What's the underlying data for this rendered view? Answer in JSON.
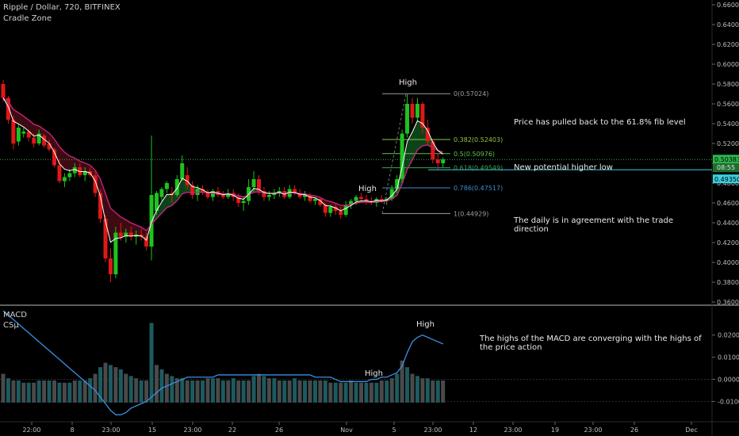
{
  "header": {
    "symbol_line": "Ripple / Dollar, 720, BITFINEX",
    "indicator": "Cradle Zone"
  },
  "macd_panel": {
    "title": "MACD",
    "subtitle": "CSμ"
  },
  "annotations": {
    "fib_note": "Price has pulled back to the 61.8% fib level",
    "higher_low_note": "New potential higher low",
    "daily_note_line1": "The daily is in agreement with the trade",
    "daily_note_line2": "direction",
    "macd_note_line1": "The highs of the MACD are converging with the highs of",
    "macd_note_line2": "the price action",
    "high_price_top": "High",
    "high_price_prev": "High",
    "high_macd_top": "High",
    "high_macd_prev": "High"
  },
  "price_axis": {
    "ticks": [
      "0.66000",
      "0.64000",
      "0.62000",
      "0.60000",
      "0.58000",
      "0.56000",
      "0.54000",
      "0.52000",
      "0.50000",
      "0.48000",
      "0.46000",
      "0.44000",
      "0.42000",
      "0.40000",
      "0.38000",
      "0.36000"
    ],
    "current_price": "0.50383",
    "countdown": "08:55",
    "level_tag": "0.49350"
  },
  "macd_axis": {
    "ticks": [
      "0.0200",
      "0.0100",
      "0.0000",
      "-0.0100"
    ]
  },
  "time_axis": {
    "labels": [
      "22:00",
      "8",
      "23:00",
      "15",
      "23:00",
      "22",
      "26",
      "Nov",
      "5",
      "23:00",
      "12",
      "23:00",
      "19",
      "23:00",
      "26",
      "Dec"
    ]
  },
  "fib_levels": [
    {
      "ratio": "0",
      "value": 0.57024,
      "label": "0(0.57024)",
      "color": "#9e9e9e"
    },
    {
      "ratio": "0.382",
      "value": 0.52403,
      "label": "0.382(0.52403)",
      "color": "#8fc640"
    },
    {
      "ratio": "0.5",
      "value": 0.50976,
      "label": "0.5(0.50976)",
      "color": "#5ec24b"
    },
    {
      "ratio": "0.618",
      "value": 0.49549,
      "label": "0.618(0.49549)",
      "color": "#3fa64a"
    },
    {
      "ratio": "0.786",
      "value": 0.47517,
      "label": "0.786(0.47517)",
      "color": "#3b8fd6"
    },
    {
      "ratio": "1",
      "value": 0.44929,
      "label": "1(0.44929)",
      "color": "#9e9e9e"
    }
  ],
  "colors": {
    "up": "#1fc21f",
    "down": "#e01818",
    "ema_fast": "#ffffff",
    "ema_slow": "#c0257a",
    "macd_line": "#3d8ee0",
    "hist_grey": "#4a4a4a",
    "hist_teal": "#1d5a60",
    "price_tag": "#2bb54a",
    "level_tag": "#3ad0e0",
    "fib_zero": "#9e9e9e"
  },
  "chart_data": {
    "type": "candlestick",
    "title": "Ripple / Dollar, 720, BITFINEX",
    "ylim": [
      0.36,
      0.66
    ],
    "candles_ohlc": [
      [
        0.58,
        0.584,
        0.562,
        0.566
      ],
      [
        0.566,
        0.568,
        0.54,
        0.544
      ],
      [
        0.544,
        0.548,
        0.514,
        0.52
      ],
      [
        0.522,
        0.54,
        0.518,
        0.536
      ],
      [
        0.53,
        0.536,
        0.526,
        0.532
      ],
      [
        0.532,
        0.534,
        0.522,
        0.526
      ],
      [
        0.526,
        0.53,
        0.516,
        0.52
      ],
      [
        0.52,
        0.534,
        0.518,
        0.53
      ],
      [
        0.528,
        0.53,
        0.516,
        0.518
      ],
      [
        0.52,
        0.524,
        0.512,
        0.514
      ],
      [
        0.514,
        0.516,
        0.496,
        0.498
      ],
      [
        0.498,
        0.504,
        0.48,
        0.482
      ],
      [
        0.482,
        0.49,
        0.476,
        0.486
      ],
      [
        0.486,
        0.494,
        0.482,
        0.49
      ],
      [
        0.49,
        0.5,
        0.486,
        0.496
      ],
      [
        0.496,
        0.5,
        0.486,
        0.488
      ],
      [
        0.488,
        0.496,
        0.482,
        0.492
      ],
      [
        0.492,
        0.496,
        0.486,
        0.488
      ],
      [
        0.488,
        0.492,
        0.466,
        0.47
      ],
      [
        0.47,
        0.474,
        0.44,
        0.444
      ],
      [
        0.444,
        0.448,
        0.4,
        0.404
      ],
      [
        0.404,
        0.414,
        0.38,
        0.388
      ],
      [
        0.388,
        0.436,
        0.384,
        0.43
      ],
      [
        0.43,
        0.44,
        0.422,
        0.426
      ],
      [
        0.426,
        0.434,
        0.42,
        0.43
      ],
      [
        0.43,
        0.436,
        0.422,
        0.426
      ],
      [
        0.426,
        0.432,
        0.418,
        0.428
      ],
      [
        0.428,
        0.434,
        0.422,
        0.426
      ],
      [
        0.426,
        0.43,
        0.412,
        0.416
      ],
      [
        0.416,
        0.528,
        0.402,
        0.468
      ],
      [
        0.452,
        0.472,
        0.448,
        0.47
      ],
      [
        0.466,
        0.476,
        0.462,
        0.474
      ],
      [
        0.474,
        0.482,
        0.47,
        0.48
      ],
      [
        0.47,
        0.476,
        0.46,
        0.468
      ],
      [
        0.468,
        0.488,
        0.466,
        0.484
      ],
      [
        0.484,
        0.508,
        0.482,
        0.5
      ],
      [
        0.488,
        0.496,
        0.474,
        0.478
      ],
      [
        0.478,
        0.482,
        0.464,
        0.468
      ],
      [
        0.468,
        0.478,
        0.462,
        0.474
      ],
      [
        0.474,
        0.478,
        0.468,
        0.47
      ],
      [
        0.47,
        0.474,
        0.464,
        0.466
      ],
      [
        0.466,
        0.474,
        0.462,
        0.472
      ],
      [
        0.472,
        0.476,
        0.466,
        0.468
      ],
      [
        0.468,
        0.472,
        0.464,
        0.466
      ],
      [
        0.466,
        0.474,
        0.464,
        0.47
      ],
      [
        0.47,
        0.474,
        0.462,
        0.466
      ],
      [
        0.466,
        0.47,
        0.456,
        0.46
      ],
      [
        0.46,
        0.466,
        0.452,
        0.462
      ],
      [
        0.462,
        0.484,
        0.458,
        0.476
      ],
      [
        0.476,
        0.492,
        0.47,
        0.484
      ],
      [
        0.484,
        0.488,
        0.468,
        0.472
      ],
      [
        0.472,
        0.476,
        0.462,
        0.466
      ],
      [
        0.466,
        0.472,
        0.462,
        0.468
      ],
      [
        0.468,
        0.474,
        0.464,
        0.47
      ],
      [
        0.47,
        0.476,
        0.466,
        0.472
      ],
      [
        0.472,
        0.476,
        0.464,
        0.466
      ],
      [
        0.466,
        0.478,
        0.464,
        0.474
      ],
      [
        0.474,
        0.478,
        0.468,
        0.47
      ],
      [
        0.47,
        0.474,
        0.464,
        0.466
      ],
      [
        0.466,
        0.472,
        0.462,
        0.468
      ],
      [
        0.468,
        0.47,
        0.46,
        0.462
      ],
      [
        0.462,
        0.466,
        0.458,
        0.464
      ],
      [
        0.464,
        0.466,
        0.456,
        0.458
      ],
      [
        0.458,
        0.46,
        0.446,
        0.45
      ],
      [
        0.45,
        0.458,
        0.446,
        0.456
      ],
      [
        0.456,
        0.46,
        0.448,
        0.452
      ],
      [
        0.452,
        0.456,
        0.444,
        0.448
      ],
      [
        0.448,
        0.462,
        0.446,
        0.458
      ],
      [
        0.458,
        0.464,
        0.454,
        0.462
      ],
      [
        0.462,
        0.468,
        0.458,
        0.466
      ],
      [
        0.466,
        0.47,
        0.46,
        0.464
      ],
      [
        0.464,
        0.468,
        0.458,
        0.462
      ],
      [
        0.462,
        0.466,
        0.458,
        0.46
      ],
      [
        0.46,
        0.466,
        0.456,
        0.464
      ],
      [
        0.464,
        0.468,
        0.46,
        0.462
      ],
      [
        0.462,
        0.466,
        0.458,
        0.464
      ],
      [
        0.464,
        0.478,
        0.462,
        0.474
      ],
      [
        0.474,
        0.488,
        0.47,
        0.484
      ],
      [
        0.484,
        0.534,
        0.48,
        0.53
      ],
      [
        0.53,
        0.57,
        0.526,
        0.56
      ],
      [
        0.56,
        0.566,
        0.54,
        0.546
      ],
      [
        0.546,
        0.566,
        0.542,
        0.56
      ],
      [
        0.56,
        0.562,
        0.53,
        0.536
      ],
      [
        0.536,
        0.544,
        0.518,
        0.522
      ],
      [
        0.522,
        0.524,
        0.5,
        0.504
      ],
      [
        0.504,
        0.51,
        0.494,
        0.5
      ],
      [
        0.5,
        0.506,
        0.496,
        0.504
      ]
    ],
    "macd_hist": [
      0.006,
      0.004,
      0.003,
      0.003,
      0.002,
      0.002,
      0.002,
      0.003,
      0.003,
      0.003,
      0.003,
      0.002,
      0.002,
      0.002,
      0.003,
      0.003,
      0.003,
      0.004,
      0.006,
      0.009,
      0.011,
      0.01,
      0.009,
      0.008,
      0.006,
      0.005,
      0.004,
      0.003,
      0.003,
      0.029,
      0.01,
      0.008,
      0.006,
      0.005,
      0.004,
      0.004,
      0.003,
      0.003,
      0.003,
      0.003,
      0.004,
      0.004,
      0.004,
      0.003,
      0.003,
      0.004,
      0.003,
      0.003,
      0.003,
      0.005,
      0.006,
      0.005,
      0.004,
      0.004,
      0.003,
      0.003,
      0.003,
      0.004,
      0.003,
      0.003,
      0.003,
      0.003,
      0.003,
      0.003,
      0.002,
      0.002,
      0.002,
      0.002,
      0.003,
      0.002,
      0.002,
      0.002,
      0.002,
      0.002,
      0.003,
      0.003,
      0.004,
      0.006,
      0.012,
      0.009,
      0.006,
      0.005,
      0.004,
      0.004,
      0.003,
      0.003,
      0.003
    ],
    "macd_line": [
      0.031,
      0.029,
      0.027,
      0.025,
      0.023,
      0.021,
      0.019,
      0.017,
      0.015,
      0.013,
      0.011,
      0.009,
      0.007,
      0.005,
      0.003,
      0.001,
      -0.001,
      -0.003,
      -0.005,
      -0.008,
      -0.011,
      -0.014,
      -0.016,
      -0.016,
      -0.015,
      -0.013,
      -0.012,
      -0.011,
      -0.01,
      -0.008,
      -0.006,
      -0.004,
      -0.003,
      -0.002,
      -0.001,
      0.0,
      0.001,
      0.001,
      0.001,
      0.001,
      0.001,
      0.001,
      0.002,
      0.002,
      0.002,
      0.002,
      0.002,
      0.002,
      0.002,
      0.002,
      0.002,
      0.002,
      0.002,
      0.002,
      0.002,
      0.002,
      0.002,
      0.002,
      0.002,
      0.002,
      0.002,
      0.001,
      0.001,
      0.001,
      0.001,
      0.0,
      -0.001,
      -0.001,
      -0.001,
      -0.001,
      -0.001,
      -0.001,
      0.0,
      0.0,
      0.001,
      0.001,
      0.002,
      0.003,
      0.006,
      0.012,
      0.017,
      0.019,
      0.02,
      0.019,
      0.018,
      0.017,
      0.016
    ],
    "macd_ylim": [
      -0.017,
      0.031
    ]
  }
}
